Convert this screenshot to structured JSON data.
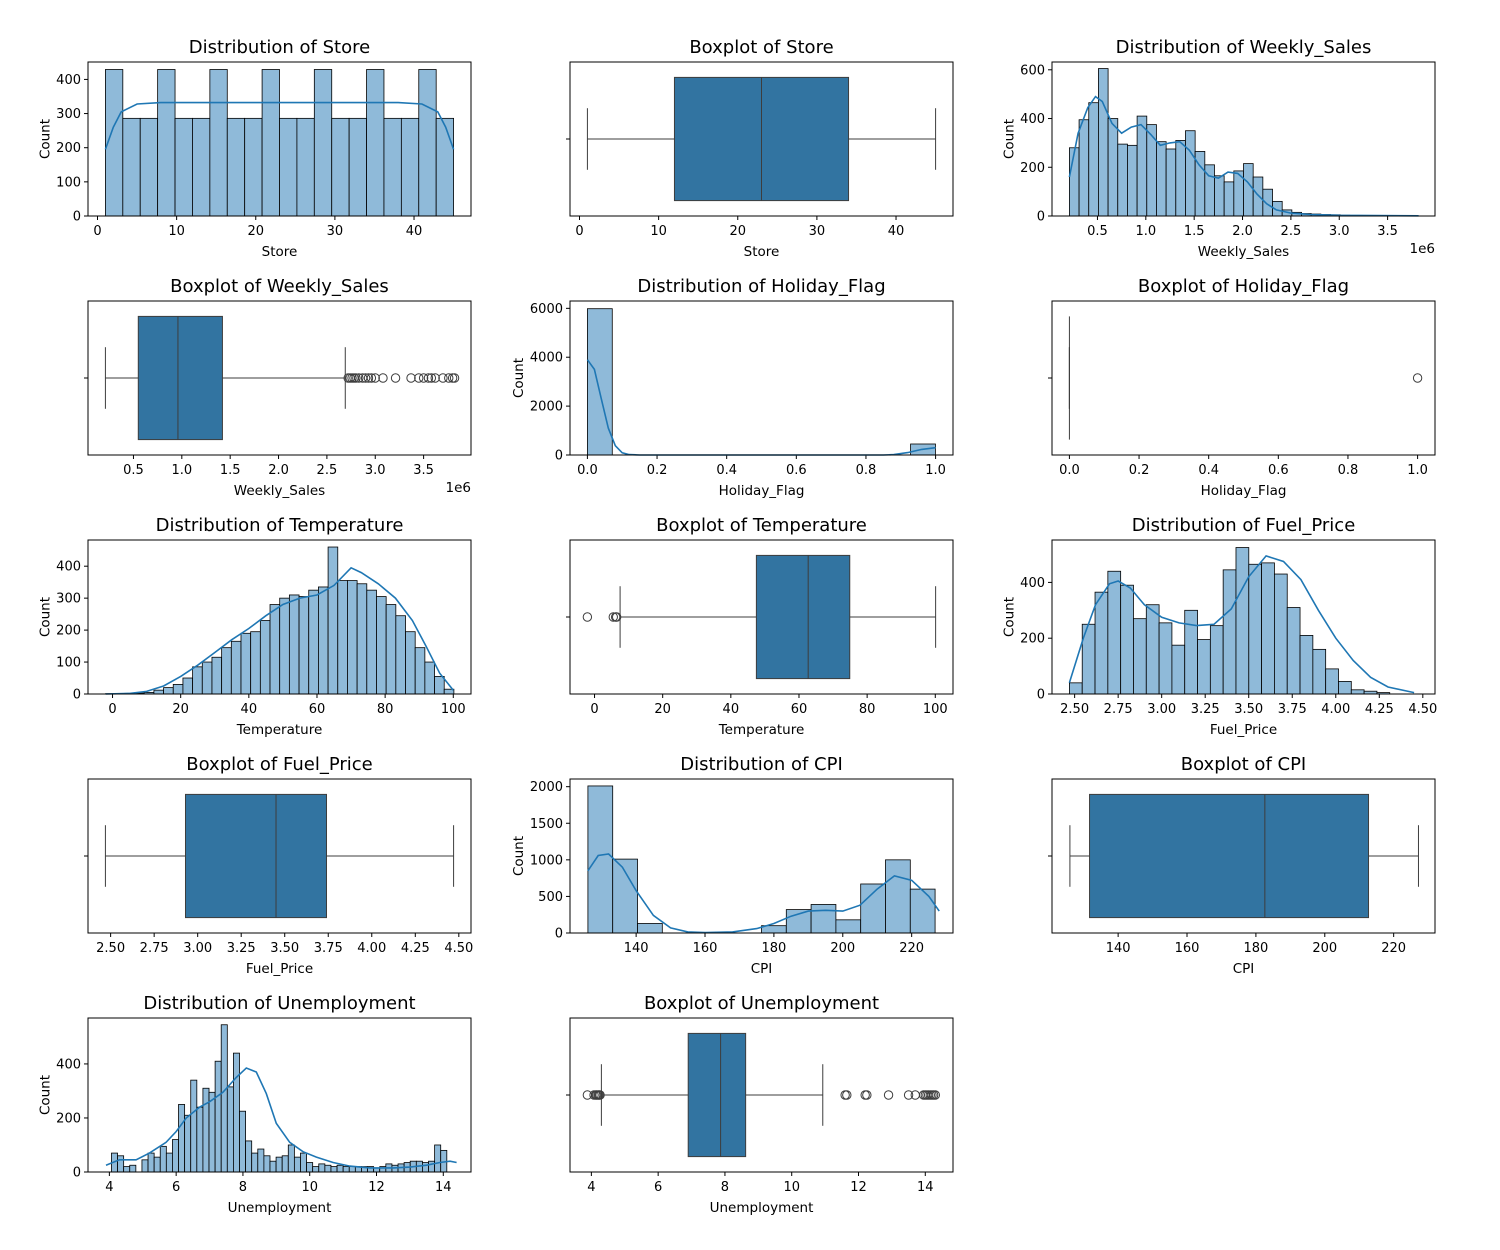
{
  "colors": {
    "hist_fill": "#8fbad9",
    "hist_edge": "#000000",
    "kde_line": "#1f77b4",
    "box_fill": "#3274a1",
    "box_line": "#3d3d3d",
    "frame": "#000000"
  },
  "chart_data": [
    {
      "type": "bar",
      "title": "Distribution of Store",
      "xlabel": "Store",
      "ylabel": "Count",
      "xlim": [
        -1.2,
        47.2
      ],
      "ylim": [
        0,
        451
      ],
      "xticks": [
        0,
        10,
        20,
        30,
        40
      ],
      "xtick_labels": [
        "0",
        "10",
        "20",
        "30",
        "40"
      ],
      "yticks": [
        0,
        100,
        200,
        300,
        400
      ],
      "ytick_labels": [
        "0",
        "100",
        "200",
        "300",
        "400"
      ],
      "bin_start": 1,
      "bin_width": 2.2,
      "counts": [
        429,
        286,
        286,
        429,
        286,
        286,
        429,
        286,
        286,
        429,
        286,
        286,
        429,
        286,
        286,
        429,
        286,
        286,
        429,
        286
      ],
      "kde": [
        [
          1,
          195
        ],
        [
          2,
          260
        ],
        [
          3,
          305
        ],
        [
          5,
          328
        ],
        [
          8,
          332
        ],
        [
          23,
          332
        ],
        [
          38,
          332
        ],
        [
          41,
          328
        ],
        [
          43,
          305
        ],
        [
          44,
          260
        ],
        [
          45,
          195
        ]
      ]
    },
    {
      "type": "box",
      "title": "Boxplot of Store",
      "xlabel": "Store",
      "xlim": [
        -1.2,
        47.2
      ],
      "xticks": [
        0,
        10,
        20,
        30,
        40
      ],
      "xtick_labels": [
        "0",
        "10",
        "20",
        "30",
        "40"
      ],
      "whisker_low": 1,
      "q1": 12,
      "median": 23,
      "q3": 34,
      "whisker_high": 45,
      "outliers": []
    },
    {
      "type": "bar",
      "title": "Distribution of Weekly_Sales",
      "xlabel": "Weekly_Sales",
      "ylabel": "Count",
      "x_offset_label": "1e6",
      "xlim": [
        0.03,
        3.99
      ],
      "ylim": [
        0,
        632
      ],
      "xticks": [
        0.5,
        1.0,
        1.5,
        2.0,
        2.5,
        3.0,
        3.5
      ],
      "xtick_labels": [
        "0.5",
        "1.0",
        "1.5",
        "2.0",
        "2.5",
        "3.0",
        "3.5"
      ],
      "yticks": [
        0,
        200,
        400,
        600
      ],
      "ytick_labels": [
        "0",
        "200",
        "400",
        "600"
      ],
      "bin_start": 0.21,
      "bin_width": 0.1,
      "counts": [
        280,
        395,
        465,
        605,
        400,
        295,
        290,
        410,
        375,
        305,
        275,
        310,
        350,
        265,
        210,
        165,
        140,
        185,
        215,
        160,
        110,
        60,
        25,
        15,
        10,
        8,
        6,
        5,
        3,
        2,
        2,
        2,
        2,
        1,
        1,
        1
      ],
      "kde": [
        [
          0.21,
          160
        ],
        [
          0.3,
          340
        ],
        [
          0.4,
          445
        ],
        [
          0.48,
          490
        ],
        [
          0.55,
          470
        ],
        [
          0.65,
          380
        ],
        [
          0.75,
          340
        ],
        [
          0.85,
          365
        ],
        [
          0.95,
          375
        ],
        [
          1.05,
          335
        ],
        [
          1.15,
          290
        ],
        [
          1.25,
          300
        ],
        [
          1.35,
          305
        ],
        [
          1.45,
          270
        ],
        [
          1.55,
          210
        ],
        [
          1.65,
          165
        ],
        [
          1.75,
          155
        ],
        [
          1.85,
          180
        ],
        [
          1.95,
          175
        ],
        [
          2.05,
          140
        ],
        [
          2.15,
          90
        ],
        [
          2.25,
          50
        ],
        [
          2.35,
          25
        ],
        [
          2.5,
          12
        ],
        [
          2.7,
          6
        ],
        [
          3.0,
          3
        ],
        [
          3.4,
          2
        ],
        [
          3.82,
          1
        ]
      ]
    },
    {
      "type": "box",
      "title": "Boxplot of Weekly_Sales",
      "xlabel": "Weekly_Sales",
      "x_offset_label": "1e6",
      "xlim": [
        0.03,
        3.99
      ],
      "xticks": [
        0.5,
        1.0,
        1.5,
        2.0,
        2.5,
        3.0,
        3.5
      ],
      "xtick_labels": [
        "0.5",
        "1.0",
        "1.5",
        "2.0",
        "2.5",
        "3.0",
        "3.5"
      ],
      "whisker_low": 0.21,
      "q1": 0.55,
      "median": 0.96,
      "q3": 1.42,
      "whisker_high": 2.69,
      "outliers": [
        2.72,
        2.74,
        2.76,
        2.78,
        2.8,
        2.83,
        2.87,
        2.9,
        2.93,
        2.96,
        3.0,
        3.08,
        3.21,
        3.37,
        3.45,
        3.5,
        3.55,
        3.58,
        3.62,
        3.7,
        3.76,
        3.8,
        3.82
      ]
    },
    {
      "type": "bar",
      "title": "Distribution of Holiday_Flag",
      "xlabel": "Holiday_Flag",
      "ylabel": "Count",
      "xlim": [
        -0.05,
        1.05
      ],
      "ylim": [
        0,
        6300
      ],
      "xticks": [
        0.0,
        0.2,
        0.4,
        0.6,
        0.8,
        1.0
      ],
      "xtick_labels": [
        "0.0",
        "0.2",
        "0.4",
        "0.6",
        "0.8",
        "1.0"
      ],
      "yticks": [
        0,
        2000,
        4000,
        6000
      ],
      "ytick_labels": [
        "0",
        "2000",
        "4000",
        "6000"
      ],
      "bin_start": 0,
      "bin_width": 0.0714,
      "counts": [
        5985,
        0,
        0,
        0,
        0,
        0,
        0,
        0,
        0,
        0,
        0,
        0,
        0,
        450
      ],
      "kde": [
        [
          0.0,
          3900
        ],
        [
          0.02,
          3500
        ],
        [
          0.04,
          2300
        ],
        [
          0.06,
          1100
        ],
        [
          0.08,
          380
        ],
        [
          0.1,
          90
        ],
        [
          0.12,
          15
        ],
        [
          0.15,
          0
        ],
        [
          0.85,
          0
        ],
        [
          0.88,
          15
        ],
        [
          0.92,
          100
        ],
        [
          0.96,
          230
        ],
        [
          1.0,
          300
        ]
      ]
    },
    {
      "type": "box",
      "title": "Boxplot of Holiday_Flag",
      "xlabel": "Holiday_Flag",
      "xlim": [
        -0.05,
        1.05
      ],
      "xticks": [
        0.0,
        0.2,
        0.4,
        0.6,
        0.8,
        1.0
      ],
      "xtick_labels": [
        "0.0",
        "0.2",
        "0.4",
        "0.6",
        "0.8",
        "1.0"
      ],
      "whisker_low": 0,
      "q1": 0,
      "median": 0,
      "q3": 0,
      "whisker_high": 0,
      "outliers": [
        1.0
      ]
    },
    {
      "type": "bar",
      "title": "Distribution of Temperature",
      "xlabel": "Temperature",
      "ylabel": "Count",
      "xlim": [
        -7.2,
        105.2
      ],
      "ylim": [
        0,
        482
      ],
      "xticks": [
        0,
        20,
        40,
        60,
        80,
        100
      ],
      "xtick_labels": [
        "0",
        "20",
        "40",
        "60",
        "80",
        "100"
      ],
      "yticks": [
        0,
        100,
        200,
        300,
        400
      ],
      "ytick_labels": [
        "0",
        "100",
        "200",
        "300",
        "400"
      ],
      "bin_start": -2.06,
      "bin_width": 2.84,
      "counts": [
        1,
        1,
        2,
        3,
        5,
        12,
        20,
        30,
        50,
        85,
        100,
        115,
        145,
        165,
        190,
        195,
        230,
        280,
        300,
        310,
        305,
        325,
        335,
        460,
        355,
        355,
        345,
        325,
        305,
        280,
        245,
        195,
        145,
        100,
        55,
        15
      ],
      "kde": [
        [
          -2,
          0
        ],
        [
          5,
          2
        ],
        [
          10,
          8
        ],
        [
          15,
          25
        ],
        [
          20,
          55
        ],
        [
          25,
          90
        ],
        [
          30,
          130
        ],
        [
          35,
          170
        ],
        [
          40,
          205
        ],
        [
          45,
          245
        ],
        [
          50,
          280
        ],
        [
          55,
          300
        ],
        [
          60,
          310
        ],
        [
          65,
          340
        ],
        [
          70,
          395
        ],
        [
          73,
          380
        ],
        [
          78,
          345
        ],
        [
          83,
          300
        ],
        [
          88,
          230
        ],
        [
          92,
          150
        ],
        [
          96,
          65
        ],
        [
          100,
          12
        ]
      ]
    },
    {
      "type": "box",
      "title": "Boxplot of Temperature",
      "xlabel": "Temperature",
      "xlim": [
        -7.2,
        105.2
      ],
      "xticks": [
        0,
        20,
        40,
        60,
        80,
        100
      ],
      "xtick_labels": [
        "0",
        "20",
        "40",
        "60",
        "80",
        "100"
      ],
      "whisker_low": 7.5,
      "q1": 47.5,
      "median": 62.7,
      "q3": 74.9,
      "whisker_high": 100.1,
      "outliers": [
        -2.1,
        5.5,
        6.2,
        6.5
      ]
    },
    {
      "type": "bar",
      "title": "Distribution of Fuel_Price",
      "xlabel": "Fuel_Price",
      "ylabel": "Count",
      "xlim": [
        2.37,
        4.57
      ],
      "ylim": [
        0,
        552
      ],
      "xticks": [
        2.5,
        2.75,
        3.0,
        3.25,
        3.5,
        3.75,
        4.0,
        4.25,
        4.5
      ],
      "xtick_labels": [
        "2.50",
        "2.75",
        "3.00",
        "3.25",
        "3.50",
        "3.75",
        "4.00",
        "4.25",
        "4.50"
      ],
      "yticks": [
        0,
        200,
        400
      ],
      "ytick_labels": [
        "0",
        "200",
        "400"
      ],
      "bin_start": 2.47,
      "bin_width": 0.0736,
      "counts": [
        40,
        250,
        365,
        440,
        390,
        270,
        320,
        255,
        175,
        300,
        195,
        245,
        445,
        525,
        465,
        470,
        430,
        310,
        210,
        160,
        90,
        45,
        15,
        10,
        5
      ],
      "kde": [
        [
          2.47,
          40
        ],
        [
          2.55,
          200
        ],
        [
          2.62,
          320
        ],
        [
          2.7,
          395
        ],
        [
          2.75,
          405
        ],
        [
          2.82,
          380
        ],
        [
          2.9,
          320
        ],
        [
          3.0,
          275
        ],
        [
          3.1,
          255
        ],
        [
          3.2,
          245
        ],
        [
          3.3,
          250
        ],
        [
          3.4,
          305
        ],
        [
          3.5,
          420
        ],
        [
          3.6,
          495
        ],
        [
          3.7,
          475
        ],
        [
          3.8,
          410
        ],
        [
          3.9,
          300
        ],
        [
          4.0,
          200
        ],
        [
          4.1,
          120
        ],
        [
          4.2,
          60
        ],
        [
          4.3,
          25
        ],
        [
          4.45,
          5
        ]
      ]
    },
    {
      "type": "box",
      "title": "Boxplot of Fuel_Price",
      "xlabel": "Fuel_Price",
      "xlim": [
        2.37,
        4.57
      ],
      "xticks": [
        2.5,
        2.75,
        3.0,
        3.25,
        3.5,
        3.75,
        4.0,
        4.25,
        4.5
      ],
      "xtick_labels": [
        "2.50",
        "2.75",
        "3.00",
        "3.25",
        "3.50",
        "3.75",
        "4.00",
        "4.25",
        "4.50"
      ],
      "whisker_low": 2.47,
      "q1": 2.93,
      "median": 3.45,
      "q3": 3.74,
      "whisker_high": 4.47,
      "outliers": []
    },
    {
      "type": "bar",
      "title": "Distribution of CPI",
      "xlabel": "CPI",
      "ylabel": "Count",
      "xlim": [
        120.8,
        232.0
      ],
      "ylim": [
        0,
        2105
      ],
      "xticks": [
        140,
        160,
        180,
        200,
        220
      ],
      "xtick_labels": [
        "140",
        "160",
        "180",
        "200",
        "220"
      ],
      "yticks": [
        0,
        500,
        1000,
        1500,
        2000
      ],
      "ytick_labels": [
        "0",
        "500",
        "1000",
        "1500",
        "2000"
      ],
      "bin_start": 126,
      "bin_width": 7.2,
      "counts": [
        2010,
        1010,
        130,
        0,
        0,
        0,
        0,
        100,
        320,
        390,
        180,
        670,
        1000,
        600
      ],
      "kde": [
        [
          126,
          850
        ],
        [
          129,
          1060
        ],
        [
          132,
          1080
        ],
        [
          136,
          900
        ],
        [
          140,
          580
        ],
        [
          145,
          240
        ],
        [
          150,
          70
        ],
        [
          155,
          15
        ],
        [
          160,
          5
        ],
        [
          168,
          15
        ],
        [
          175,
          60
        ],
        [
          180,
          130
        ],
        [
          185,
          230
        ],
        [
          190,
          300
        ],
        [
          195,
          310
        ],
        [
          200,
          300
        ],
        [
          205,
          380
        ],
        [
          210,
          600
        ],
        [
          215,
          780
        ],
        [
          220,
          720
        ],
        [
          225,
          500
        ],
        [
          228,
          300
        ]
      ]
    },
    {
      "type": "box",
      "title": "Boxplot of CPI",
      "xlabel": "CPI",
      "xlim": [
        120.8,
        232.0
      ],
      "xticks": [
        140,
        160,
        180,
        200,
        220
      ],
      "xtick_labels": [
        "140",
        "160",
        "180",
        "200",
        "220"
      ],
      "whisker_low": 126,
      "q1": 131.7,
      "median": 182.6,
      "q3": 212.7,
      "whisker_high": 227.2,
      "outliers": []
    },
    {
      "type": "bar",
      "title": "Distribution of Unemployment",
      "xlabel": "Unemployment",
      "ylabel": "Count",
      "xlim": [
        3.36,
        14.83
      ],
      "ylim": [
        0,
        570
      ],
      "xticks": [
        4,
        6,
        8,
        10,
        12,
        14
      ],
      "xtick_labels": [
        "4",
        "6",
        "8",
        "10",
        "12",
        "14"
      ],
      "yticks": [
        0,
        200,
        400
      ],
      "ytick_labels": [
        "0",
        "200",
        "400"
      ],
      "bin_start": 3.88,
      "bin_width": 0.1826,
      "counts": [
        0,
        70,
        60,
        20,
        25,
        0,
        45,
        70,
        55,
        95,
        70,
        120,
        250,
        210,
        340,
        240,
        310,
        295,
        410,
        545,
        315,
        440,
        225,
        115,
        70,
        85,
        60,
        40,
        55,
        60,
        100,
        55,
        70,
        35,
        20,
        30,
        25,
        20,
        25,
        20,
        20,
        20,
        20,
        20,
        15,
        20,
        30,
        25,
        30,
        35,
        40,
        40,
        35,
        40,
        100,
        80
      ],
      "kde": [
        [
          3.9,
          25
        ],
        [
          4.3,
          45
        ],
        [
          4.8,
          45
        ],
        [
          5.2,
          70
        ],
        [
          5.7,
          110
        ],
        [
          6.0,
          150
        ],
        [
          6.3,
          200
        ],
        [
          6.7,
          240
        ],
        [
          7.0,
          260
        ],
        [
          7.4,
          295
        ],
        [
          7.8,
          350
        ],
        [
          8.1,
          385
        ],
        [
          8.4,
          370
        ],
        [
          8.7,
          290
        ],
        [
          9.0,
          180
        ],
        [
          9.4,
          110
        ],
        [
          9.8,
          75
        ],
        [
          10.2,
          55
        ],
        [
          10.7,
          35
        ],
        [
          11.2,
          22
        ],
        [
          11.8,
          15
        ],
        [
          12.5,
          15
        ],
        [
          13.0,
          18
        ],
        [
          13.5,
          25
        ],
        [
          13.9,
          35
        ],
        [
          14.2,
          40
        ],
        [
          14.4,
          35
        ]
      ]
    },
    {
      "type": "box",
      "title": "Boxplot of Unemployment",
      "xlabel": "Unemployment",
      "xlim": [
        3.36,
        14.83
      ],
      "xticks": [
        4,
        6,
        8,
        10,
        12,
        14
      ],
      "xtick_labels": [
        "4",
        "6",
        "8",
        "10",
        "12",
        "14"
      ],
      "whisker_low": 4.3,
      "q1": 6.9,
      "median": 7.87,
      "q3": 8.62,
      "whisker_high": 10.93,
      "outliers": [
        3.88,
        4.08,
        4.13,
        4.16,
        4.2,
        4.23,
        4.26,
        11.6,
        11.65,
        12.2,
        12.25,
        12.9,
        13.5,
        13.7,
        13.95,
        14.0,
        14.05,
        14.1,
        14.15,
        14.2,
        14.25,
        14.3
      ]
    }
  ]
}
